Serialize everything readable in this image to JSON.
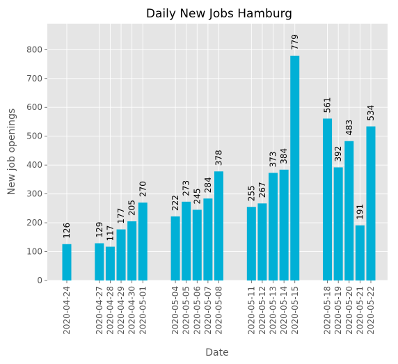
{
  "chart_data": {
    "type": "bar",
    "title": "Daily New Jobs Hamburg",
    "xlabel": "Date",
    "ylabel": "New job openings",
    "ylim": [
      0,
      890
    ],
    "yticks": [
      0,
      100,
      200,
      300,
      400,
      500,
      600,
      700,
      800
    ],
    "grid": true,
    "bar_color": "#00b0d6",
    "background_color": "#e5e5e5",
    "categories": [
      "2020-04-24",
      "2020-04-27",
      "2020-04-28",
      "2020-04-29",
      "2020-04-30",
      "2020-05-01",
      "2020-05-04",
      "2020-05-05",
      "2020-05-06",
      "2020-05-07",
      "2020-05-08",
      "2020-05-11",
      "2020-05-12",
      "2020-05-13",
      "2020-05-14",
      "2020-05-15",
      "2020-05-18",
      "2020-05-19",
      "2020-05-20",
      "2020-05-21",
      "2020-05-22"
    ],
    "values": [
      126,
      129,
      117,
      177,
      205,
      270,
      222,
      273,
      245,
      284,
      378,
      255,
      267,
      373,
      384,
      779,
      561,
      392,
      483,
      191,
      534
    ]
  }
}
